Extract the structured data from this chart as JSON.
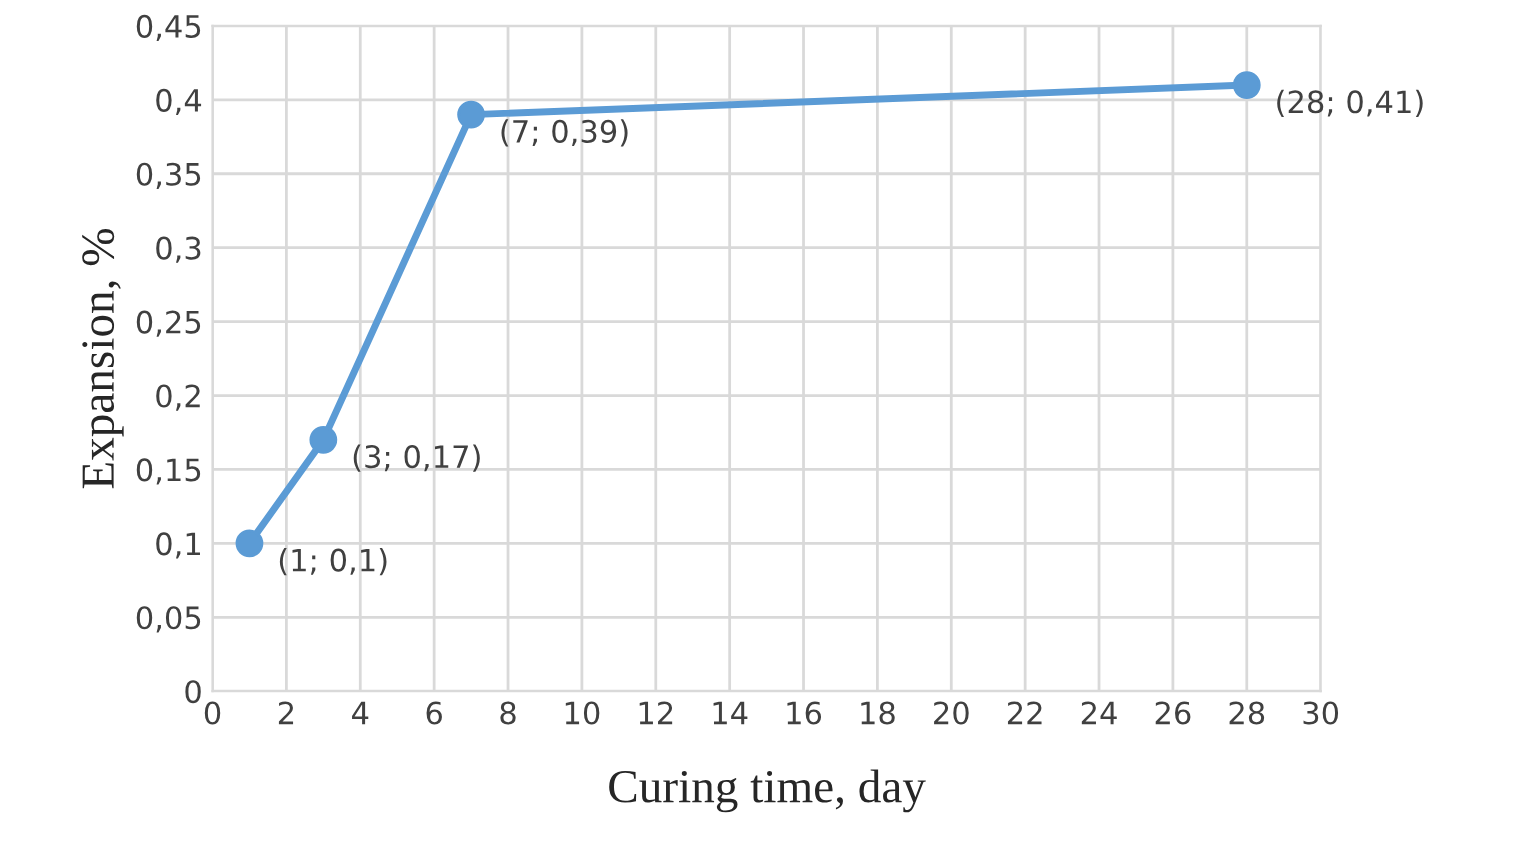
{
  "chart_data": {
    "type": "line",
    "xlabel": "Curing time, day",
    "ylabel": "Expansion, %",
    "x": [
      1,
      3,
      7,
      28
    ],
    "series": [
      {
        "color": "#5b9bd5",
        "values": [
          0.1,
          0.17,
          0.39,
          0.41
        ],
        "value_labels": [
          "(1; 0,1)",
          "(3; 0,17)",
          "(7; 0,39)",
          "(28; 0,41)"
        ]
      }
    ],
    "xlim": [
      0,
      30
    ],
    "xticks": [
      0,
      2,
      4,
      6,
      8,
      10,
      12,
      14,
      16,
      18,
      20,
      22,
      24,
      26,
      28,
      30
    ],
    "ylim": [
      0,
      0.45
    ],
    "yticks": [
      0,
      {
        "value": 0.05,
        "label": "0,05"
      },
      {
        "value": 0.1,
        "label": "0,1"
      },
      {
        "value": 0.15,
        "label": "0,15"
      },
      {
        "value": 0.2,
        "label": "0,2"
      },
      {
        "value": 0.25,
        "label": "0,25"
      },
      {
        "value": 0.3,
        "label": "0,3"
      },
      {
        "value": 0.35,
        "label": "0,35"
      },
      {
        "value": 0.4,
        "label": "0,4"
      },
      {
        "value": 0.45,
        "label": "0,45"
      }
    ],
    "grid": true,
    "marker": "circle",
    "line_style": "solid",
    "legend": false
  }
}
